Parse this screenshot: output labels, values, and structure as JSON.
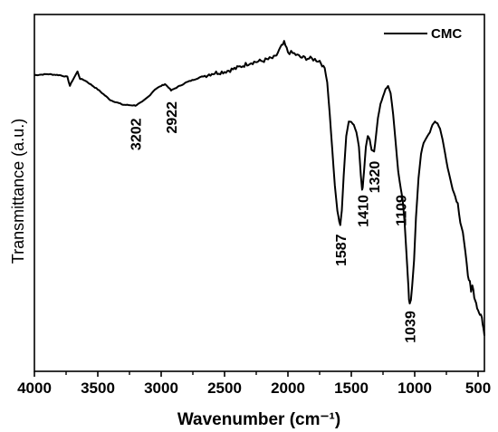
{
  "chart_data": {
    "type": "line",
    "title": "",
    "xlabel": "Wavenumber (cm⁻¹)",
    "ylabel": "Transmittance (a.u.)",
    "xlim": [
      4000,
      450
    ],
    "ylim": [
      0,
      100
    ],
    "x_reversed": true,
    "x_ticks": [
      4000,
      3500,
      3000,
      2500,
      2000,
      1500,
      1000,
      500
    ],
    "y_ticks_labeled": false,
    "grid": false,
    "legend": {
      "placement": "top-right",
      "entries": [
        "CMC"
      ]
    },
    "series": [
      {
        "name": "CMC",
        "color": "#000000",
        "points": [
          [
            4000,
            83.0
          ],
          [
            3900,
            83.3
          ],
          [
            3800,
            83.0
          ],
          [
            3740,
            82.5
          ],
          [
            3720,
            80.0
          ],
          [
            3700,
            81.5
          ],
          [
            3660,
            84.0
          ],
          [
            3640,
            82.0
          ],
          [
            3600,
            81.5
          ],
          [
            3500,
            79.0
          ],
          [
            3400,
            76.0
          ],
          [
            3300,
            74.7
          ],
          [
            3202,
            74.5
          ],
          [
            3150,
            75.5
          ],
          [
            3100,
            77.0
          ],
          [
            3050,
            79.0
          ],
          [
            3000,
            80.0
          ],
          [
            2970,
            80.5
          ],
          [
            2940,
            79.5
          ],
          [
            2922,
            78.7
          ],
          [
            2880,
            79.5
          ],
          [
            2800,
            81.0
          ],
          [
            2700,
            82.3
          ],
          [
            2600,
            83.5
          ],
          [
            2500,
            84.0
          ],
          [
            2400,
            85.0
          ],
          [
            2300,
            86.5
          ],
          [
            2200,
            87.0
          ],
          [
            2100,
            88.0
          ],
          [
            2060,
            90.5
          ],
          [
            2030,
            92.0
          ],
          [
            2000,
            89.5
          ],
          [
            1950,
            89.0
          ],
          [
            1900,
            88.0
          ],
          [
            1800,
            87.5
          ],
          [
            1750,
            87.0
          ],
          [
            1710,
            85.0
          ],
          [
            1690,
            81.0
          ],
          [
            1670,
            72.0
          ],
          [
            1650,
            62.0
          ],
          [
            1630,
            52.0
          ],
          [
            1610,
            45.0
          ],
          [
            1595,
            42.0
          ],
          [
            1587,
            41.0
          ],
          [
            1575,
            45.0
          ],
          [
            1560,
            55.0
          ],
          [
            1540,
            66.0
          ],
          [
            1520,
            70.0
          ],
          [
            1500,
            70.0
          ],
          [
            1480,
            69.0
          ],
          [
            1460,
            67.0
          ],
          [
            1440,
            63.0
          ],
          [
            1425,
            55.0
          ],
          [
            1415,
            51.0
          ],
          [
            1410,
            51.5
          ],
          [
            1400,
            56.0
          ],
          [
            1385,
            63.0
          ],
          [
            1370,
            66.0
          ],
          [
            1355,
            65.0
          ],
          [
            1340,
            62.0
          ],
          [
            1320,
            61.5
          ],
          [
            1305,
            66.0
          ],
          [
            1290,
            71.0
          ],
          [
            1270,
            75.0
          ],
          [
            1250,
            77.0
          ],
          [
            1230,
            79.0
          ],
          [
            1210,
            80.0
          ],
          [
            1190,
            78.0
          ],
          [
            1170,
            72.0
          ],
          [
            1150,
            64.0
          ],
          [
            1130,
            56.0
          ],
          [
            1109,
            51.0
          ],
          [
            1095,
            48.0
          ],
          [
            1080,
            42.0
          ],
          [
            1060,
            30.0
          ],
          [
            1050,
            24.0
          ],
          [
            1045,
            20.0
          ],
          [
            1039,
            19.0
          ],
          [
            1030,
            20.0
          ],
          [
            1020,
            24.0
          ],
          [
            1005,
            31.0
          ],
          [
            990,
            43.0
          ],
          [
            970,
            54.0
          ],
          [
            950,
            61.0
          ],
          [
            930,
            64.0
          ],
          [
            900,
            66.0
          ],
          [
            880,
            67.0
          ],
          [
            860,
            69.0
          ],
          [
            840,
            70.0
          ],
          [
            820,
            69.5
          ],
          [
            800,
            68.0
          ],
          [
            780,
            65.0
          ],
          [
            760,
            61.0
          ],
          [
            740,
            57.0
          ],
          [
            720,
            54.0
          ],
          [
            700,
            51.0
          ],
          [
            680,
            49.0
          ],
          [
            660,
            47.0
          ],
          [
            640,
            42.0
          ],
          [
            620,
            39.0
          ],
          [
            600,
            33.0
          ],
          [
            580,
            27.0
          ],
          [
            565,
            25.0
          ],
          [
            555,
            22.0
          ],
          [
            545,
            24.0
          ],
          [
            530,
            21.0
          ],
          [
            515,
            19.0
          ],
          [
            500,
            17.0
          ],
          [
            485,
            16.0
          ],
          [
            470,
            15.0
          ],
          [
            458,
            12.0
          ],
          [
            450,
            10.0
          ]
        ]
      }
    ],
    "annotations": [
      {
        "label": "3202",
        "x": 3202,
        "y": 74.5
      },
      {
        "label": "2922",
        "x": 2922,
        "y": 78.7
      },
      {
        "label": "1587",
        "x": 1587,
        "y": 41.0
      },
      {
        "label": "1410",
        "x": 1410,
        "y": 51.5
      },
      {
        "label": "1320",
        "x": 1320,
        "y": 61.5
      },
      {
        "label": "1109",
        "x": 1109,
        "y": 51.0
      },
      {
        "label": "1039",
        "x": 1039,
        "y": 19.0
      }
    ]
  }
}
